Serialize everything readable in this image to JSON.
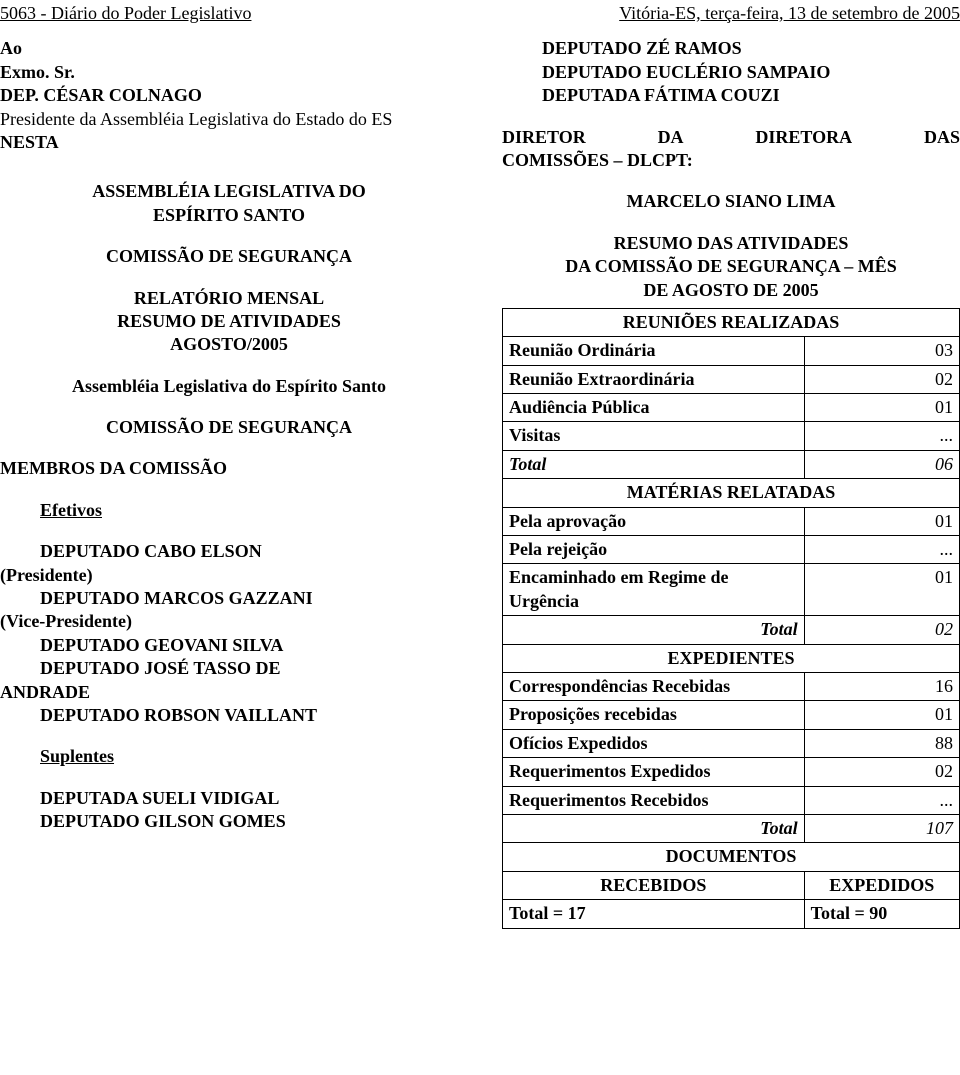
{
  "header": {
    "left": "5063 - Diário do Poder Legislativo",
    "right": "Vitória-ES, terça-feira, 13 de setembro de 2005"
  },
  "left": {
    "to1": "Ao",
    "to2": "Exmo. Sr.",
    "pres": "DEP. CÉSAR COLNAGO",
    "pres_role1": "Presidente da Assembléia Legislativa do Estado do ES",
    "nesta": "NESTA",
    "assembly1": "ASSEMBLÉIA LEGISLATIVA DO",
    "assembly2": "ESPÍRITO SANTO",
    "commission": "COMISSÃO DE SEGURANÇA",
    "report1": "RELATÓRIO MENSAL",
    "report2": "RESUMO DE ATIVIDADES",
    "report3": "AGOSTO/2005",
    "assembly_full": "Assembléia Legislativa do Espírito Santo",
    "commission2": "COMISSÃO DE SEGURANÇA",
    "members_hdr": "MEMBROS DA COMISSÃO",
    "efetivos_hdr": "Efetivos",
    "m1a": "DEPUTADO CABO ELSON",
    "m1b": "(Presidente)",
    "m2a": "DEPUTADO MARCOS GAZZANI",
    "m2b": "(Vice-Presidente)",
    "m3": "DEPUTADO GEOVANI SILVA",
    "m4a": "DEPUTADO JOSÉ TASSO DE",
    "m4b": "ANDRADE",
    "m5": "DEPUTADO ROBSON VAILLANT",
    "suplentes_hdr": "Suplentes",
    "s1": "DEPUTADA SUELI VIDIGAL",
    "s2": "DEPUTADO GILSON GOMES"
  },
  "right": {
    "d1": "DEPUTADO ZÉ RAMOS",
    "d2": "DEPUTADO EUCLÉRIO SAMPAIO",
    "d3": "DEPUTADA FÁTIMA COUZI",
    "dir1a": "DIRETOR",
    "dir1b": "DA",
    "dir1c": "DIRETORA",
    "dir1d": "DAS",
    "dir2": "COMISSÕES – DLCPT:",
    "marcelo": "MARCELO SIANO LIMA",
    "resumo1": "RESUMO DAS ATIVIDADES",
    "resumo2": "DA COMISSÃO DE SEGURANÇA – MÊS",
    "resumo3": "DE AGOSTO DE 2005"
  },
  "table": {
    "sec1": "REUNIÕES REALIZADAS",
    "r1l": "Reunião Ordinária",
    "r1v": "03",
    "r2l": "Reunião Extraordinária",
    "r2v": "02",
    "r3l": "Audiência Pública",
    "r3v": "01",
    "r4l": "Visitas",
    "r4v": "...",
    "r5l": "Total",
    "r5v": "06",
    "sec2": "MATÉRIAS RELATADAS",
    "m1l": "Pela aprovação",
    "m1v": "01",
    "m2l": "Pela rejeição",
    "m2v": "...",
    "m3l": "Encaminhado em Regime de Urgência",
    "m3v": "01",
    "m4l": "Total",
    "m4v": "02",
    "sec3": "EXPEDIENTES",
    "e1l": "Correspondências Recebidas",
    "e1v": "16",
    "e2l": "Proposições recebidas",
    "e2v": "01",
    "e3l": "Ofícios Expedidos",
    "e3v": "88",
    "e4l": "Requerimentos Expedidos",
    "e4v": "02",
    "e5l": "Requerimentos Recebidos",
    "e5v": "...",
    "e6l": "Total",
    "e6v": "107",
    "sec4": "DOCUMENTOS",
    "docL": "RECEBIDOS",
    "docR": "EXPEDIDOS",
    "docTL": "Total = 17",
    "docTR": "Total = 90"
  },
  "colors": {
    "text": "#000000",
    "background": "#ffffff",
    "border": "#000000"
  }
}
